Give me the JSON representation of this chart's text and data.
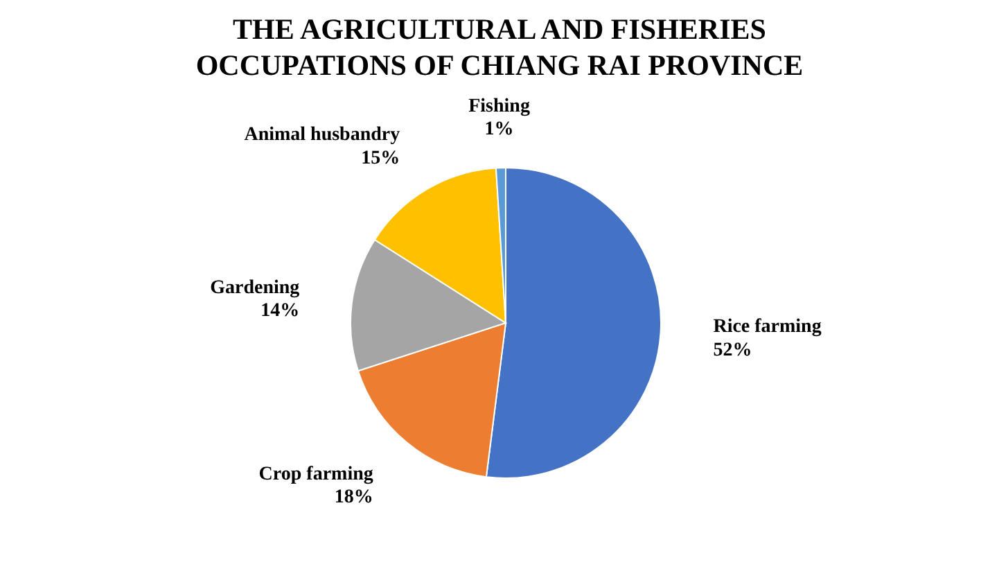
{
  "chart_data": {
    "type": "pie",
    "title": "THE AGRICULTURAL AND FISHERIES OCCUPATIONS OF CHIANG RAI PROVINCE",
    "categories": [
      "Rice farming",
      "Crop farming",
      "Gardening",
      "Animal husbandry",
      "Fishing"
    ],
    "values": [
      52,
      18,
      14,
      15,
      1
    ],
    "value_labels": [
      "52%",
      "18%",
      "14%",
      "15%",
      "1%"
    ],
    "colors": [
      "#4472c4",
      "#ed7d31",
      "#a5a5a5",
      "#ffc000",
      "#5b9bd5"
    ]
  }
}
